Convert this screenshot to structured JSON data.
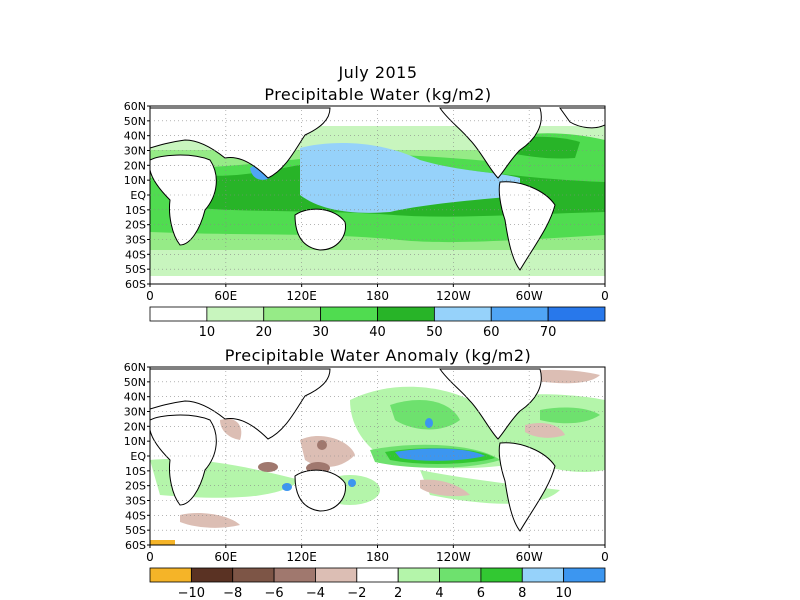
{
  "title_main": "July 2015",
  "title_top": "Precipitable Water (kg/m2)",
  "title_bottom": "Precipitable Water Anomaly (kg/m2)",
  "lat_labels": [
    "60N",
    "50N",
    "40N",
    "30N",
    "20N",
    "10N",
    "EQ",
    "10S",
    "20S",
    "30S",
    "40S",
    "50S",
    "60S"
  ],
  "lon_labels": [
    "0",
    "60E",
    "120E",
    "180",
    "120W",
    "60W",
    "0"
  ],
  "colorbar_top": {
    "labels": [
      "10",
      "20",
      "30",
      "40",
      "50",
      "60",
      "70"
    ],
    "colors": [
      "#ffffff",
      "#c8f5be",
      "#96eb87",
      "#50dc50",
      "#28b428",
      "#96d2fa",
      "#50a5f5",
      "#2878eb"
    ]
  },
  "colorbar_bottom": {
    "labels": [
      "−10",
      "−8",
      "−6",
      "−4",
      "−2",
      "2",
      "4",
      "6",
      "8",
      "10"
    ],
    "colors": [
      "#f5b428",
      "#5a3223",
      "#7d5546",
      "#a0786e",
      "#dcbeb4",
      "#ffffff",
      "#b4f5aa",
      "#6ee16e",
      "#32c832",
      "#96d2fa",
      "#3c96f0"
    ]
  }
}
